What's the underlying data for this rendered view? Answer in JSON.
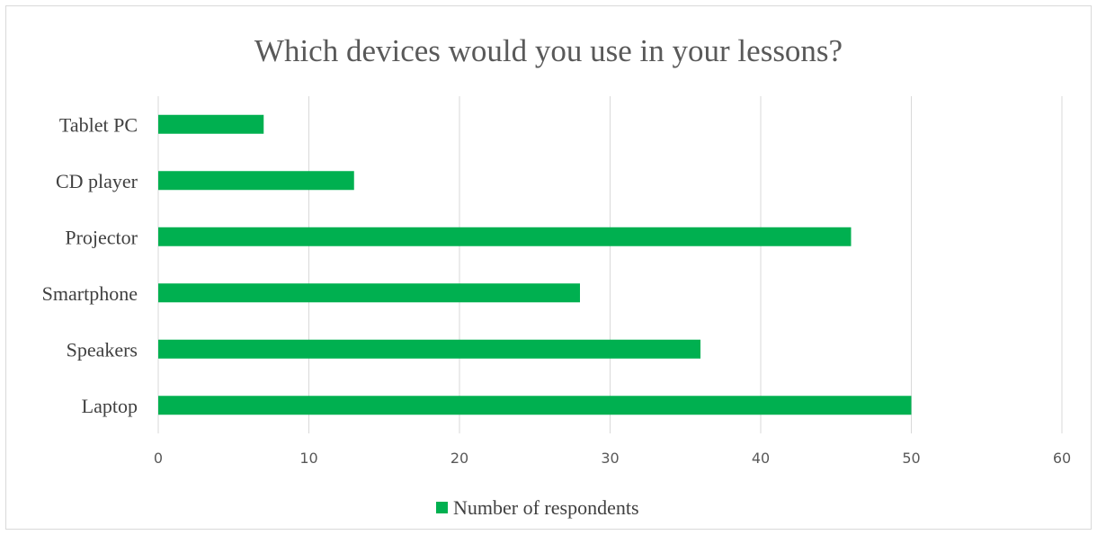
{
  "chart_data": {
    "type": "bar",
    "orientation": "horizontal",
    "title": "Which devices would you use in your lessons?",
    "categories": [
      "Tablet PC",
      "CD player",
      "Projector",
      "Smartphone",
      "Speakers",
      "Laptop"
    ],
    "series": [
      {
        "name": "Number of respondents",
        "values": [
          7,
          13,
          46,
          28,
          36,
          50
        ],
        "color": "#00b050"
      }
    ],
    "xlim": [
      0,
      60
    ],
    "xticks": [
      "0",
      "10",
      "20",
      "30",
      "40",
      "50",
      "60"
    ],
    "grid": "vertical",
    "legend_position": "bottom"
  }
}
